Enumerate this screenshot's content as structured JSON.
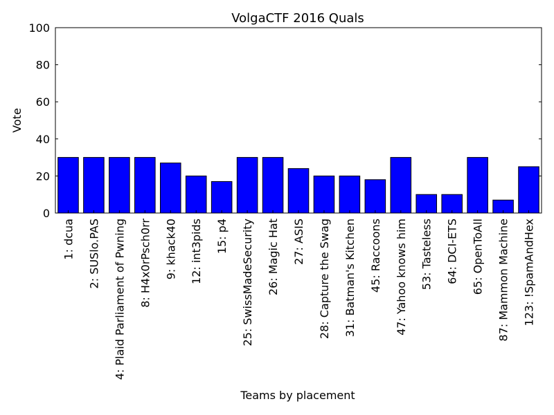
{
  "chart_data": {
    "type": "bar",
    "title": "VolgaCTF 2016 Quals",
    "xlabel": "Teams by placement",
    "ylabel": "Vote",
    "ylim": [
      0,
      100
    ],
    "yticks": [
      0,
      20,
      40,
      60,
      80,
      100
    ],
    "grid": false,
    "bar_color": "#0000ff",
    "categories": [
      "1: dcua",
      "2: SUSlo.PAS",
      "4: Plaid Parliament of Pwning",
      "8: H4x0rPsch0rr",
      "9: khack40",
      "12: int3pids",
      "15: p4",
      "25: SwissMadeSecurity",
      "26: Magic Hat",
      "27: ASIS",
      "28: Capture the Swag",
      "31: Batman's Kitchen",
      "45: Raccoons",
      "47: Yahoo knows him",
      "53: Tasteless",
      "64: DCI-ETS",
      "65: OpenToAll",
      "87: Mammon Machine",
      "123: !SpamAndHex"
    ],
    "values": [
      30,
      30,
      30,
      30,
      27,
      20,
      17,
      30,
      30,
      24,
      20,
      20,
      18,
      30,
      10,
      10,
      30,
      7,
      25
    ]
  }
}
